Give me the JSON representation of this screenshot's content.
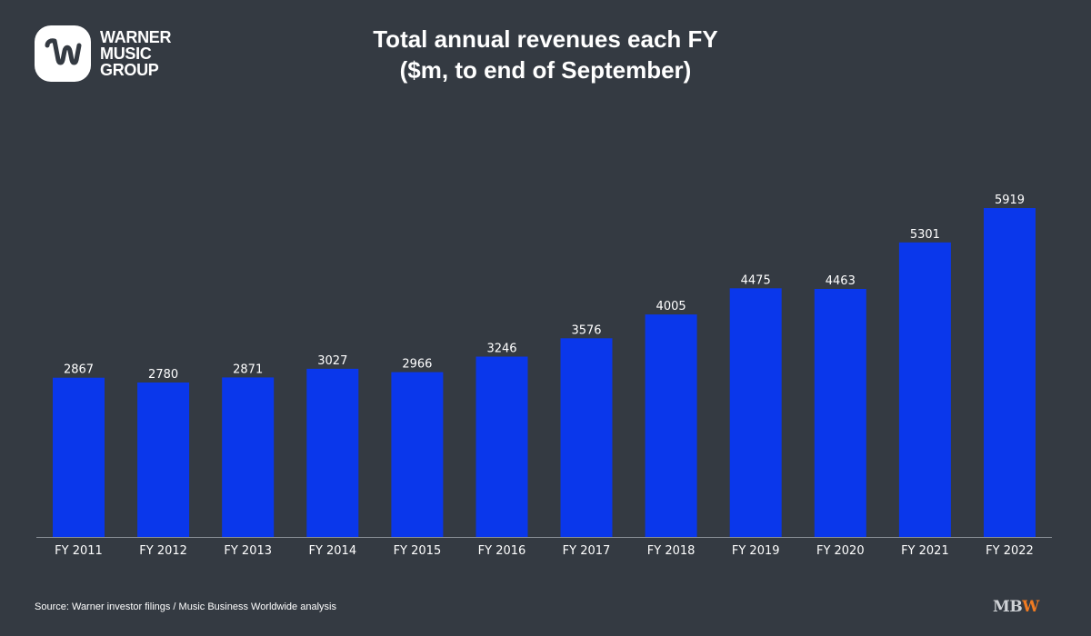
{
  "logo": {
    "text": "WARNER\nMUSIC\nGROUP"
  },
  "chart_data": {
    "type": "bar",
    "title_line1": "Total annual revenues each FY",
    "title_line2": "($m, to end of September)",
    "categories": [
      "FY 2011",
      "FY 2012",
      "FY 2013",
      "FY 2014",
      "FY 2015",
      "FY 2016",
      "FY 2017",
      "FY 2018",
      "FY 2019",
      "FY 2020",
      "FY 2021",
      "FY 2022"
    ],
    "values": [
      2867,
      2780,
      2871,
      3027,
      2966,
      3246,
      3576,
      4005,
      4475,
      4463,
      5301,
      5919
    ],
    "xlabel": "",
    "ylabel": "",
    "ylim": [
      0,
      5919
    ],
    "grid": false,
    "data_labels": true,
    "bar_color": "#0a37eb",
    "axis_color": "#8a8f96"
  },
  "footer": {
    "source": "Source: Warner investor filings / Music Business Worldwide analysis",
    "brand_mb": "MB",
    "brand_w": "W"
  },
  "colors": {
    "background": "#343a42",
    "text": "#ffffff",
    "brand_accent": "#f07b22"
  }
}
